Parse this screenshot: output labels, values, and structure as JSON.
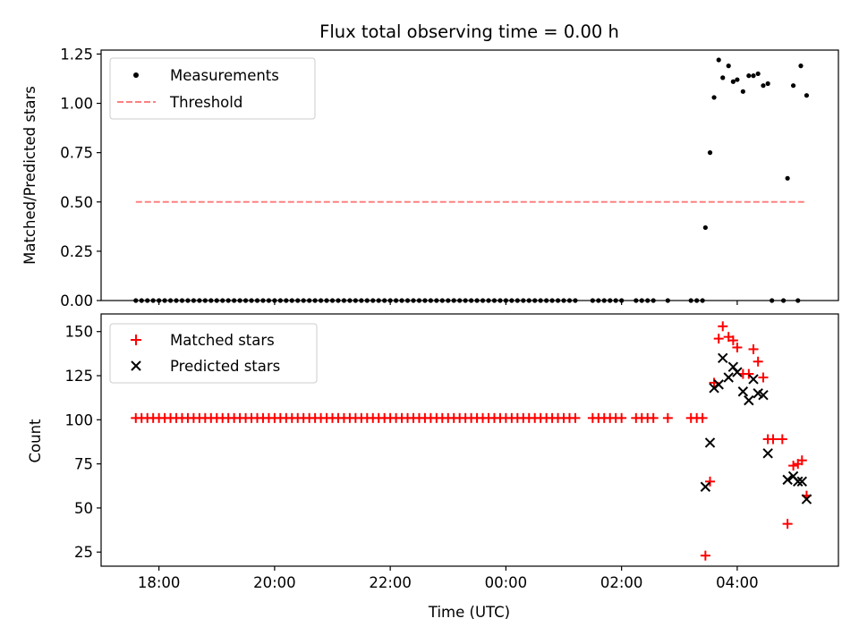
{
  "chart_data": {
    "title": "Flux total observing time = 0.00 h",
    "xlabel": "Time (UTC)",
    "x_unit": "hours after 00:00 UTC",
    "xlim": [
      -7.0,
      5.75
    ],
    "xticks": [
      {
        "value": -6,
        "label": "18:00"
      },
      {
        "value": -4,
        "label": "20:00"
      },
      {
        "value": -2,
        "label": "22:00"
      },
      {
        "value": 0,
        "label": "00:00"
      },
      {
        "value": 2,
        "label": "02:00"
      },
      {
        "value": 4,
        "label": "04:00"
      }
    ],
    "panels": [
      {
        "type": "scatter",
        "ylabel": "Matched/Predicted stars",
        "ylim": [
          0,
          1.27
        ],
        "yticks": [
          {
            "value": 0,
            "label": "0.00"
          },
          {
            "value": 0.25,
            "label": "0.25"
          },
          {
            "value": 0.5,
            "label": "0.50"
          },
          {
            "value": 0.75,
            "label": "0.75"
          },
          {
            "value": 1.0,
            "label": "1.00"
          },
          {
            "value": 1.25,
            "label": "1.25"
          }
        ],
        "legend": {
          "position": "top-left",
          "entries": [
            "Measurements",
            "Threshold"
          ]
        },
        "series": [
          {
            "name": "Measurements",
            "marker": "dot",
            "color": "#000000",
            "points": [
              [
                3.45,
                0.37
              ],
              [
                3.53,
                0.75
              ],
              [
                3.6,
                1.03
              ],
              [
                3.68,
                1.22
              ],
              [
                3.75,
                1.13
              ],
              [
                3.85,
                1.19
              ],
              [
                3.93,
                1.11
              ],
              [
                4.0,
                1.12
              ],
              [
                4.1,
                1.06
              ],
              [
                4.2,
                1.14
              ],
              [
                4.28,
                1.14
              ],
              [
                4.36,
                1.15
              ],
              [
                4.45,
                1.09
              ],
              [
                4.53,
                1.1
              ],
              [
                4.87,
                0.62
              ],
              [
                4.97,
                1.09
              ],
              [
                5.1,
                1.19
              ],
              [
                5.2,
                1.04
              ],
              [
                4.6,
                0.0
              ],
              [
                4.8,
                0.0
              ],
              [
                5.05,
                0.0
              ]
            ],
            "zero_points": [
              [
                -6.4,
                1.2
              ],
              [
                1.5,
                2.05
              ],
              [
                2.25,
                2.6
              ],
              [
                2.8,
                2.8
              ],
              [
                3.2,
                3.4
              ]
            ]
          },
          {
            "name": "Threshold",
            "line": "dashed",
            "color": "#ff8080",
            "x": [
              -6.4,
              5.2
            ],
            "y": [
              0.5,
              0.5
            ]
          }
        ]
      },
      {
        "type": "scatter",
        "ylabel": "Count",
        "ylim": [
          17,
          160
        ],
        "yticks": [
          {
            "value": 25,
            "label": "25"
          },
          {
            "value": 50,
            "label": "50"
          },
          {
            "value": 75,
            "label": "75"
          },
          {
            "value": 100,
            "label": "100"
          },
          {
            "value": 125,
            "label": "125"
          },
          {
            "value": 150,
            "label": "150"
          }
        ],
        "legend": {
          "position": "top-left",
          "entries": [
            "Matched stars",
            "Predicted stars"
          ]
        },
        "series": [
          {
            "name": "Matched stars",
            "marker": "plus",
            "color": "#ff0000",
            "points": [
              [
                3.45,
                23
              ],
              [
                3.53,
                65
              ],
              [
                3.6,
                121
              ],
              [
                3.68,
                146
              ],
              [
                3.75,
                153
              ],
              [
                3.85,
                147
              ],
              [
                3.93,
                145
              ],
              [
                4.0,
                141
              ],
              [
                4.1,
                126
              ],
              [
                4.2,
                126
              ],
              [
                4.28,
                140
              ],
              [
                4.36,
                133
              ],
              [
                4.45,
                124
              ],
              [
                4.53,
                89
              ],
              [
                4.62,
                89
              ],
              [
                4.78,
                89
              ],
              [
                4.87,
                41
              ],
              [
                4.97,
                74
              ],
              [
                5.05,
                75
              ],
              [
                5.12,
                77
              ],
              [
                5.2,
                57
              ]
            ],
            "flat_value": 101,
            "flat_segments": [
              [
                -6.4,
                1.2
              ],
              [
                1.5,
                2.05
              ],
              [
                2.25,
                2.6
              ],
              [
                2.8,
                2.8
              ],
              [
                3.2,
                3.4
              ]
            ]
          },
          {
            "name": "Predicted stars",
            "marker": "x",
            "color": "#000000",
            "points": [
              [
                3.45,
                62
              ],
              [
                3.53,
                87
              ],
              [
                3.6,
                118
              ],
              [
                3.68,
                120
              ],
              [
                3.75,
                135
              ],
              [
                3.85,
                124
              ],
              [
                3.93,
                130
              ],
              [
                4.0,
                127
              ],
              [
                4.1,
                116
              ],
              [
                4.2,
                111
              ],
              [
                4.28,
                123
              ],
              [
                4.36,
                115
              ],
              [
                4.45,
                114
              ],
              [
                4.53,
                81
              ],
              [
                4.87,
                66
              ],
              [
                4.97,
                68
              ],
              [
                5.05,
                65
              ],
              [
                5.12,
                65
              ],
              [
                5.2,
                55
              ]
            ]
          }
        ]
      }
    ]
  }
}
